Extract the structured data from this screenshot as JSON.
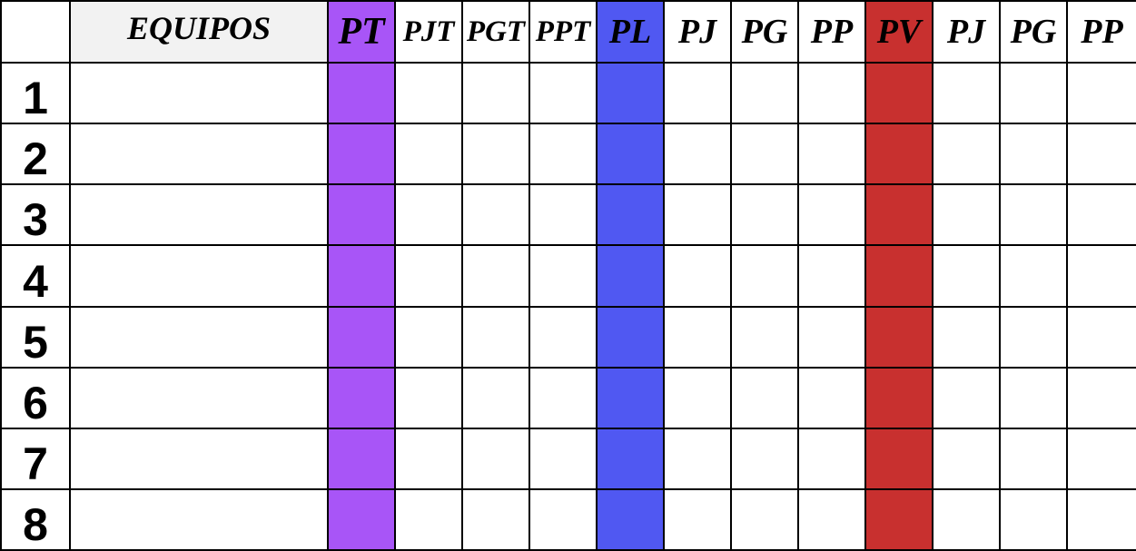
{
  "table": {
    "corner": "",
    "team_header": "EQUIPOS",
    "total": {
      "header": "PT",
      "sub": [
        "PJT",
        "PGT",
        "PPT"
      ],
      "color": "#a855f7"
    },
    "local": {
      "header": "PL",
      "sub": [
        "PJ",
        "PG",
        "PP"
      ],
      "color": "#5058f2"
    },
    "visit": {
      "header": "PV",
      "sub": [
        "PJ",
        "PG",
        "PP"
      ],
      "color": "#c8302f"
    },
    "ranks": [
      "1",
      "2",
      "3",
      "4",
      "5",
      "6",
      "7",
      "8"
    ],
    "teams": [
      "",
      "",
      "",
      "",
      "",
      "",
      "",
      ""
    ]
  }
}
